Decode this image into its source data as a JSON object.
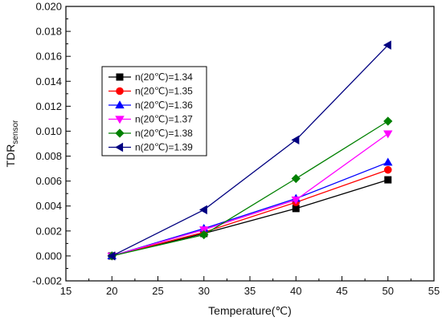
{
  "chart_data": {
    "type": "line",
    "title": "",
    "xlabel": "Temperature(℃)",
    "ylabel": "TDR",
    "ylabel_sub": "sensor",
    "xlim": [
      15,
      55
    ],
    "ylim": [
      -0.002,
      0.02
    ],
    "xticks": [
      15,
      20,
      25,
      30,
      35,
      40,
      45,
      50,
      55
    ],
    "yticks": [
      "-0.002",
      "0.000",
      "0.002",
      "0.004",
      "0.006",
      "0.008",
      "0.010",
      "0.012",
      "0.014",
      "0.016",
      "0.018",
      "0.020"
    ],
    "x": [
      20,
      30,
      40,
      50
    ],
    "grid": false,
    "legend_position": "upper-left",
    "series": [
      {
        "name": "n(20℃)=1.34",
        "color": "#000000",
        "marker": "square",
        "values": [
          0.0,
          0.0018,
          0.0038,
          0.0061
        ]
      },
      {
        "name": "n(20℃)=1.35",
        "color": "#ff0000",
        "marker": "circle",
        "values": [
          0.0,
          0.0019,
          0.0043,
          0.0069
        ]
      },
      {
        "name": "n(20℃)=1.36",
        "color": "#0000ff",
        "marker": "triangle-up",
        "values": [
          0.0,
          0.0022,
          0.0046,
          0.0075
        ]
      },
      {
        "name": "n(20℃)=1.37",
        "color": "#ff00ff",
        "marker": "triangle-down",
        "values": [
          0.0,
          0.0021,
          0.0045,
          0.0098
        ]
      },
      {
        "name": "n(20℃)=1.38",
        "color": "#008000",
        "marker": "diamond",
        "values": [
          0.0,
          0.0017,
          0.0062,
          0.0108
        ]
      },
      {
        "name": "n(20℃)=1.39",
        "color": "#000080",
        "marker": "triangle-left",
        "values": [
          0.0,
          0.0037,
          0.0093,
          0.0169
        ]
      }
    ]
  }
}
